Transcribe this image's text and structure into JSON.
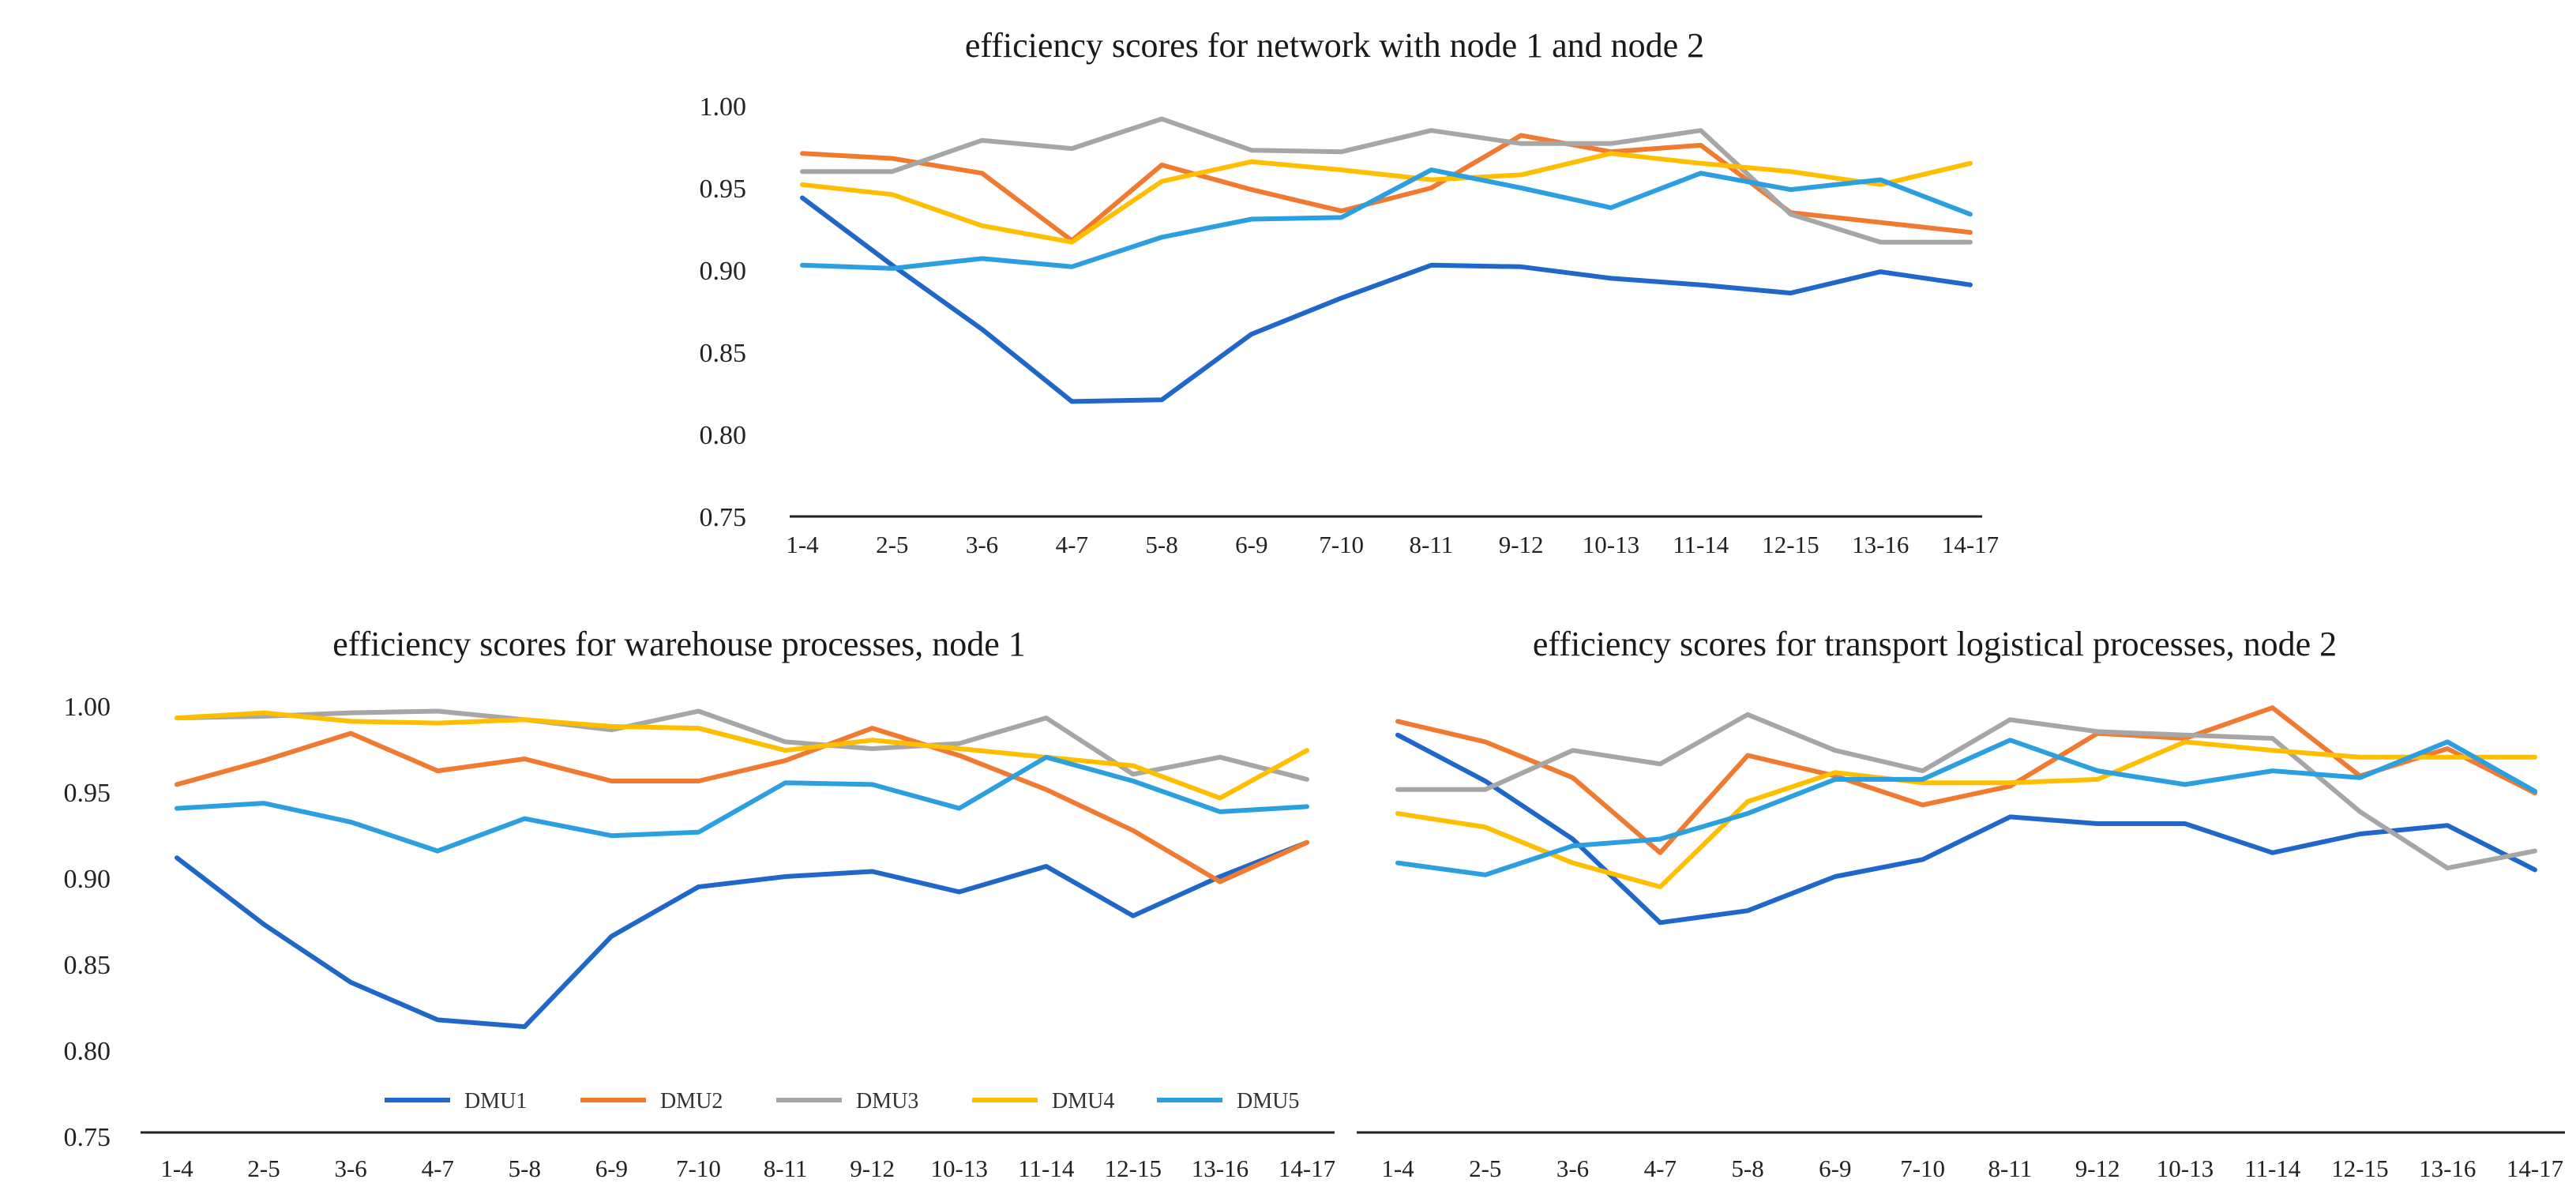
{
  "colors": {
    "DMU1": "#1f67c8",
    "DMU2": "#f07a30",
    "DMU3": "#a6a6a6",
    "DMU4": "#ffbf00",
    "DMU5": "#2b9fe0"
  },
  "legend": {
    "DMU1": "DMU1",
    "DMU2": "DMU2",
    "DMU3": "DMU3",
    "DMU4": "DMU4",
    "DMU5": "DMU5"
  },
  "chart_data": [
    {
      "type": "line",
      "title": "efficiency scores for network with node 1 and node 2",
      "xlabel": "",
      "ylabel": "",
      "ylim": [
        0.75,
        1.0
      ],
      "yticks": [
        "1.00",
        "0.95",
        "0.90",
        "0.85",
        "0.80",
        "0.75"
      ],
      "categories": [
        "1-4",
        "2-5",
        "3-6",
        "4-7",
        "5-8",
        "6-9",
        "7-10",
        "8-11",
        "9-12",
        "10-13",
        "11-14",
        "12-15",
        "13-16",
        "14-17"
      ],
      "series": [
        {
          "name": "DMU1",
          "values": [
            0.944,
            0.903,
            0.864,
            0.82,
            0.821,
            0.861,
            0.883,
            0.903,
            0.902,
            0.895,
            0.891,
            0.886,
            0.899,
            0.891
          ]
        },
        {
          "name": "DMU2",
          "values": [
            0.971,
            0.968,
            0.959,
            0.918,
            0.964,
            0.949,
            0.936,
            0.95,
            0.982,
            0.972,
            0.976,
            0.935,
            0.929,
            0.923
          ]
        },
        {
          "name": "DMU3",
          "values": [
            0.96,
            0.96,
            0.979,
            0.974,
            0.992,
            0.973,
            0.972,
            0.985,
            0.977,
            0.977,
            0.985,
            0.934,
            0.917,
            0.917
          ]
        },
        {
          "name": "DMU4",
          "values": [
            0.952,
            0.946,
            0.927,
            0.917,
            0.954,
            0.966,
            0.961,
            0.955,
            0.958,
            0.971,
            0.965,
            0.96,
            0.952,
            0.965
          ]
        },
        {
          "name": "DMU5",
          "values": [
            0.903,
            0.901,
            0.907,
            0.902,
            0.92,
            0.931,
            0.932,
            0.961,
            0.95,
            0.938,
            0.959,
            0.949,
            0.955,
            0.934
          ]
        }
      ]
    },
    {
      "type": "line",
      "title": "efficiency scores for warehouse processes, node 1",
      "xlabel": "",
      "ylabel": "",
      "ylim": [
        0.75,
        1.0
      ],
      "yticks": [
        "1.00",
        "0.95",
        "0.90",
        "0.85",
        "0.80",
        "0.75"
      ],
      "legend": "bottom",
      "categories": [
        "1-4",
        "2-5",
        "3-6",
        "4-7",
        "5-8",
        "6-9",
        "7-10",
        "8-11",
        "9-12",
        "10-13",
        "11-14",
        "12-15",
        "13-16",
        "14-17"
      ],
      "series": [
        {
          "name": "DMU1",
          "values": [
            0.911,
            0.872,
            0.838,
            0.816,
            0.812,
            0.865,
            0.894,
            0.9,
            0.903,
            0.891,
            0.906,
            0.877,
            0.9,
            0.92
          ]
        },
        {
          "name": "DMU2",
          "values": [
            0.954,
            0.968,
            0.984,
            0.962,
            0.969,
            0.956,
            0.956,
            0.968,
            0.987,
            0.971,
            0.951,
            0.927,
            0.897,
            0.92
          ]
        },
        {
          "name": "DMU3",
          "values": [
            0.993,
            0.994,
            0.996,
            0.997,
            0.992,
            0.986,
            0.997,
            0.979,
            0.975,
            0.978,
            0.993,
            0.96,
            0.97,
            0.957
          ]
        },
        {
          "name": "DMU4",
          "values": [
            0.993,
            0.996,
            0.991,
            0.99,
            0.992,
            0.988,
            0.987,
            0.974,
            0.98,
            0.975,
            0.97,
            0.965,
            0.946,
            0.974
          ]
        },
        {
          "name": "DMU5",
          "values": [
            0.94,
            0.943,
            0.932,
            0.915,
            0.934,
            0.924,
            0.926,
            0.955,
            0.954,
            0.94,
            0.97,
            0.956,
            0.938,
            0.941
          ]
        }
      ]
    },
    {
      "type": "line",
      "title": "efficiency scores for transport logistical processes, node 2",
      "xlabel": "",
      "ylabel": "",
      "ylim": [
        0.75,
        1.0
      ],
      "categories": [
        "1-4",
        "2-5",
        "3-6",
        "4-7",
        "5-8",
        "6-9",
        "7-10",
        "8-11",
        "9-12",
        "10-13",
        "11-14",
        "12-15",
        "13-16",
        "14-17"
      ],
      "series": [
        {
          "name": "DMU1",
          "values": [
            0.983,
            0.956,
            0.922,
            0.873,
            0.88,
            0.9,
            0.91,
            0.935,
            0.931,
            0.931,
            0.914,
            0.925,
            0.93,
            0.904
          ]
        },
        {
          "name": "DMU2",
          "values": [
            0.991,
            0.979,
            0.958,
            0.914,
            0.971,
            0.959,
            0.942,
            0.953,
            0.984,
            0.981,
            0.999,
            0.959,
            0.975,
            0.949
          ]
        },
        {
          "name": "DMU3",
          "values": [
            0.951,
            0.951,
            0.974,
            0.966,
            0.995,
            0.974,
            0.962,
            0.992,
            0.985,
            0.983,
            0.981,
            0.938,
            0.905,
            0.915
          ]
        },
        {
          "name": "DMU4",
          "values": [
            0.937,
            0.929,
            0.908,
            0.894,
            0.944,
            0.961,
            0.955,
            0.955,
            0.957,
            0.979,
            0.974,
            0.97,
            0.97,
            0.97
          ]
        },
        {
          "name": "DMU5",
          "values": [
            0.908,
            0.901,
            0.918,
            0.922,
            0.937,
            0.957,
            0.957,
            0.98,
            0.962,
            0.954,
            0.962,
            0.958,
            0.979,
            0.95
          ]
        }
      ]
    }
  ]
}
